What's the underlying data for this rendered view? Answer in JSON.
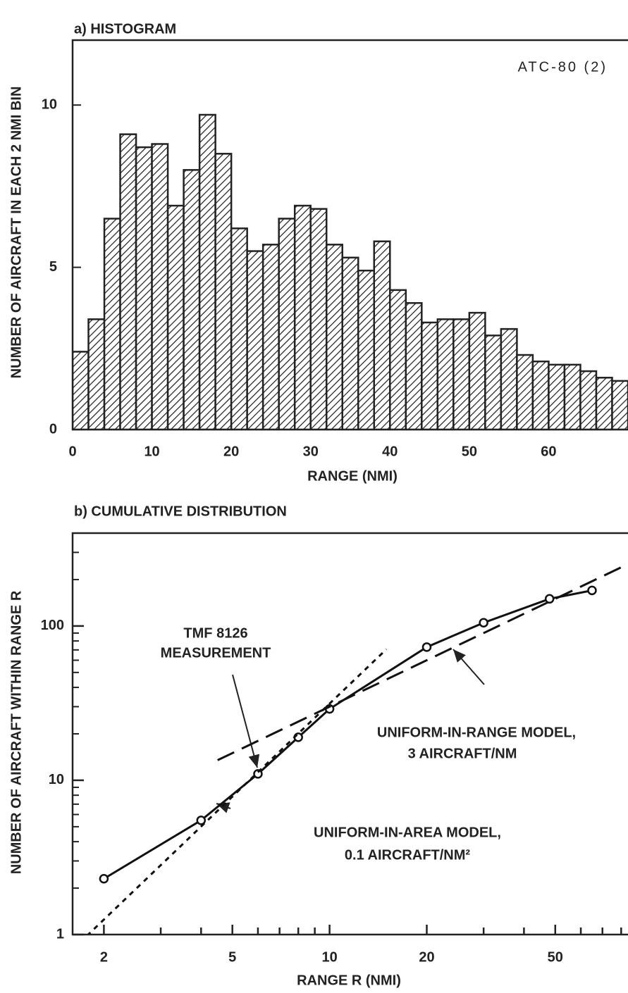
{
  "chart_data": [
    {
      "type": "histogram",
      "title": "a) HISTOGRAM",
      "xlabel": "RANGE (NMI)",
      "ylabel": "NUMBER OF AIRCRAFT IN EACH 2 NMI BIN",
      "annotation": "ATC-80 (2)",
      "bins": [
        0,
        2,
        4,
        6,
        8,
        10,
        12,
        14,
        16,
        18,
        20,
        22,
        24,
        26,
        28,
        30,
        32,
        34,
        36,
        38,
        40,
        42,
        44,
        46,
        48,
        50,
        52,
        54,
        56,
        58,
        60,
        62,
        64,
        66,
        68,
        70
      ],
      "values": [
        2.4,
        3.4,
        6.5,
        9.1,
        8.7,
        8.8,
        6.9,
        8.0,
        9.7,
        8.5,
        6.2,
        5.5,
        5.7,
        6.5,
        6.9,
        6.8,
        5.7,
        5.3,
        4.9,
        5.8,
        4.3,
        3.9,
        3.3,
        3.4,
        3.4,
        3.6,
        2.9,
        3.1,
        2.3,
        2.1,
        2.0,
        2.0,
        1.8,
        1.6,
        1.5
      ],
      "color": "#222",
      "xlim": [
        0,
        70
      ],
      "xticks": [
        0,
        10,
        20,
        30,
        40,
        50,
        60
      ],
      "ylim": [
        0,
        12
      ],
      "yticks": [
        0,
        5,
        10
      ]
    },
    {
      "type": "line",
      "title": "b) CUMULATIVE DISTRIBUTION",
      "xlabel": "RANGE R (NMI)",
      "ylabel": "NUMBER OF AIRCRAFT WITHIN RANGE R",
      "log_x": true,
      "log_y": true,
      "xlim": [
        1.6,
        84
      ],
      "xticks": [
        2,
        5,
        10,
        20,
        50
      ],
      "xminorticks": [
        3,
        4,
        6,
        7,
        8,
        9,
        30,
        40,
        60,
        70,
        80
      ],
      "ylim": [
        1,
        400
      ],
      "yticks": [
        1,
        10,
        100
      ],
      "yminorticks": [
        2,
        3,
        4,
        5,
        6,
        7,
        8,
        9,
        20,
        30,
        40,
        50,
        60,
        70,
        80,
        90,
        200,
        300
      ],
      "series": [
        {
          "name": "TMF 8126 MEASUREMENT",
          "style": "solid",
          "markers": true,
          "color": "#111",
          "x": [
            2,
            4,
            6,
            8,
            10,
            20,
            30,
            48,
            65
          ],
          "values": [
            2.3,
            5.5,
            11,
            19,
            29,
            73,
            105,
            150,
            170
          ]
        },
        {
          "name": "UNIFORM-IN-RANGE MODEL, 3 AIRCRAFT/NM",
          "style": "dashed",
          "markers": false,
          "color": "#111",
          "x": [
            4.5,
            84
          ],
          "values": [
            13.5,
            252
          ]
        },
        {
          "name": "UNIFORM-IN-AREA MODEL, 0.1 AIRCRAFT/NM²",
          "style": "dotted",
          "markers": false,
          "color": "#111",
          "x": [
            1.6,
            15
          ],
          "values": [
            0.8,
            70.7
          ]
        }
      ],
      "annotations": [
        "TMF 8126",
        "MEASUREMENT",
        "UNIFORM-IN-RANGE MODEL,",
        "3 AIRCRAFT/NM",
        "UNIFORM-IN-AREA MODEL,",
        "0.1 AIRCRAFT/NM²"
      ]
    }
  ]
}
